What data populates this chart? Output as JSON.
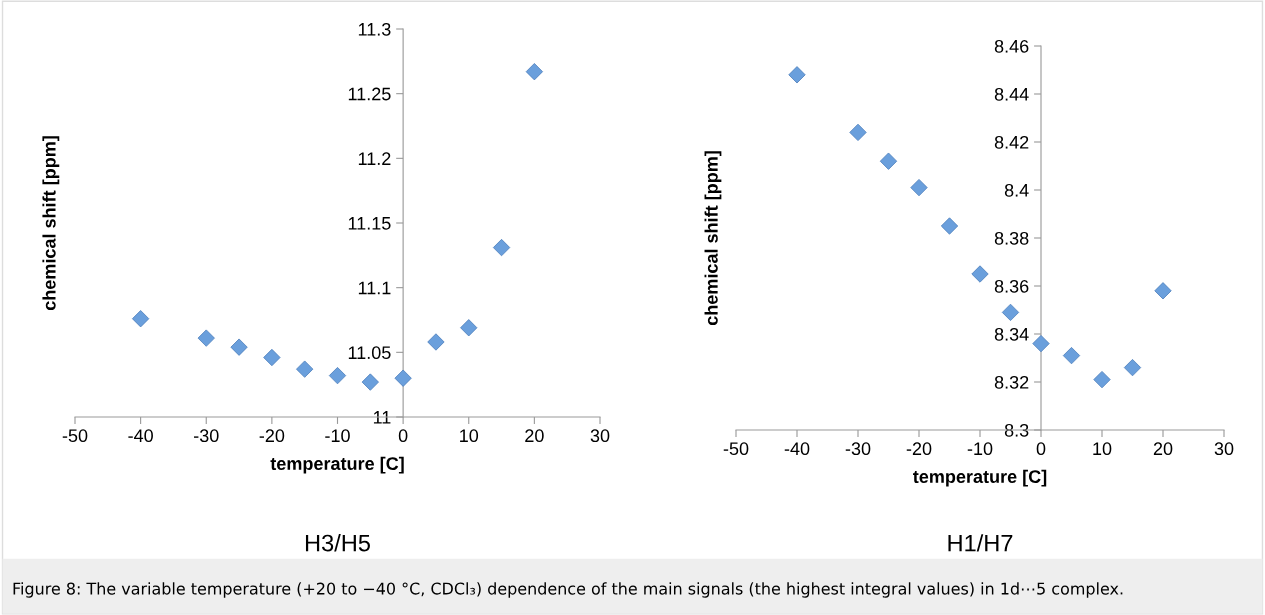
{
  "chart_data": [
    {
      "type": "scatter",
      "title": "H3/H5",
      "xlabel": "temperature [C]",
      "ylabel": "chemical shift [ppm]",
      "marker": "diamond",
      "grid": false,
      "x": [
        -40,
        -30,
        -25,
        -20,
        -15,
        -10,
        -5,
        0,
        5,
        10,
        15,
        20
      ],
      "series": [
        {
          "color": "#6a9fdc",
          "values": [
            11.076,
            11.061,
            11.054,
            11.046,
            11.037,
            11.032,
            11.027,
            11.03,
            11.058,
            11.069,
            11.131,
            11.267
          ]
        }
      ],
      "xlim": [
        -50,
        30
      ],
      "xticks": [
        -50,
        -40,
        -30,
        -20,
        -10,
        0,
        10,
        20,
        30
      ],
      "ylim": [
        11,
        11.3
      ],
      "yticks": [
        11,
        11.05,
        11.1,
        11.15,
        11.2,
        11.25,
        11.3
      ],
      "annotations": [
        "Figure 8: The variable temperature (+20 to −40 °C, CDCl₃) dependence of the main signals (the highest integral values) in 1d⋯5 complex."
      ]
    },
    {
      "type": "scatter",
      "title": "H1/H7",
      "xlabel": "temperature [C]",
      "ylabel": "chemical shift [ppm]",
      "marker": "diamond",
      "grid": false,
      "x": [
        -40,
        -30,
        -25,
        -20,
        -15,
        -10,
        -5,
        0,
        5,
        10,
        15,
        20
      ],
      "series": [
        {
          "color": "#6a9fdc",
          "values": [
            8.448,
            8.424,
            8.412,
            8.401,
            8.385,
            8.365,
            8.349,
            8.336,
            8.331,
            8.321,
            8.326,
            8.358
          ]
        }
      ],
      "xlim": [
        -50,
        30
      ],
      "xticks": [
        -50,
        -40,
        -30,
        -20,
        -10,
        0,
        10,
        20,
        30
      ],
      "ylim": [
        8.3,
        8.46
      ],
      "yticks": [
        8.3,
        8.32,
        8.34,
        8.36,
        8.38,
        8.4,
        8.42,
        8.44,
        8.46
      ]
    }
  ]
}
